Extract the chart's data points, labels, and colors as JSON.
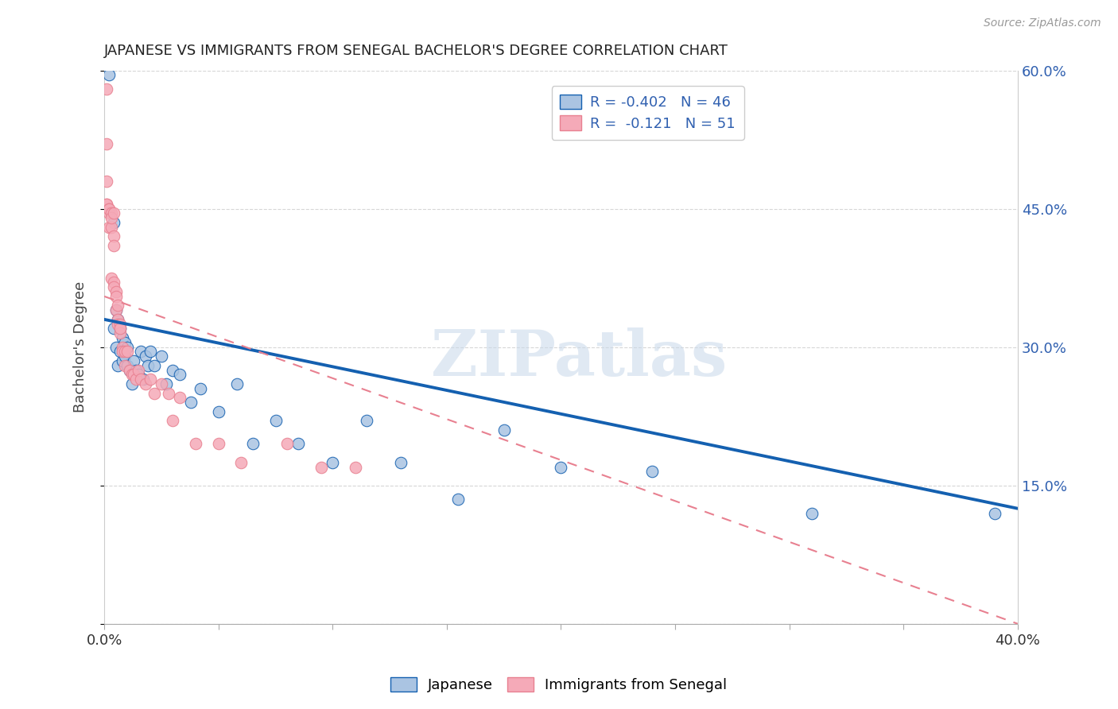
{
  "title": "JAPANESE VS IMMIGRANTS FROM SENEGAL BACHELOR'S DEGREE CORRELATION CHART",
  "source": "Source: ZipAtlas.com",
  "ylabel": "Bachelor's Degree",
  "xlim": [
    0,
    0.4
  ],
  "ylim": [
    0,
    0.6
  ],
  "xticks": [
    0.0,
    0.05,
    0.1,
    0.15,
    0.2,
    0.25,
    0.3,
    0.35,
    0.4
  ],
  "yticks": [
    0.0,
    0.15,
    0.3,
    0.45,
    0.6
  ],
  "ytick_labels": [
    "",
    "15.0%",
    "30.0%",
    "45.0%",
    "60.0%"
  ],
  "watermark_text": "ZIPatlas",
  "legend_R_japanese": "-0.402",
  "legend_N_japanese": "46",
  "legend_R_senegal": "-0.121",
  "legend_N_senegal": "51",
  "japanese_color": "#aac4e2",
  "senegal_color": "#f5aab8",
  "trend_japanese_color": "#1460b0",
  "trend_senegal_color": "#e88090",
  "tick_color": "#3060b0",
  "japanese_x": [
    0.002,
    0.004,
    0.004,
    0.005,
    0.005,
    0.006,
    0.006,
    0.007,
    0.007,
    0.008,
    0.008,
    0.009,
    0.009,
    0.01,
    0.01,
    0.011,
    0.012,
    0.013,
    0.014,
    0.015,
    0.016,
    0.017,
    0.018,
    0.019,
    0.02,
    0.022,
    0.025,
    0.027,
    0.03,
    0.033,
    0.038,
    0.042,
    0.05,
    0.058,
    0.065,
    0.075,
    0.085,
    0.1,
    0.115,
    0.13,
    0.155,
    0.175,
    0.2,
    0.24,
    0.31,
    0.39
  ],
  "japanese_y": [
    0.595,
    0.435,
    0.32,
    0.34,
    0.3,
    0.33,
    0.28,
    0.32,
    0.295,
    0.31,
    0.285,
    0.29,
    0.305,
    0.28,
    0.3,
    0.275,
    0.26,
    0.285,
    0.275,
    0.27,
    0.295,
    0.265,
    0.29,
    0.28,
    0.295,
    0.28,
    0.29,
    0.26,
    0.275,
    0.27,
    0.24,
    0.255,
    0.23,
    0.26,
    0.195,
    0.22,
    0.195,
    0.175,
    0.22,
    0.175,
    0.135,
    0.21,
    0.17,
    0.165,
    0.12,
    0.12
  ],
  "senegal_x": [
    0.001,
    0.001,
    0.001,
    0.001,
    0.001,
    0.002,
    0.002,
    0.002,
    0.002,
    0.003,
    0.003,
    0.003,
    0.003,
    0.004,
    0.004,
    0.004,
    0.004,
    0.004,
    0.005,
    0.005,
    0.005,
    0.006,
    0.006,
    0.006,
    0.007,
    0.007,
    0.007,
    0.008,
    0.008,
    0.009,
    0.009,
    0.01,
    0.011,
    0.012,
    0.013,
    0.014,
    0.015,
    0.016,
    0.018,
    0.02,
    0.022,
    0.025,
    0.028,
    0.03,
    0.033,
    0.04,
    0.05,
    0.06,
    0.08,
    0.095,
    0.11
  ],
  "senegal_y": [
    0.58,
    0.52,
    0.48,
    0.455,
    0.455,
    0.45,
    0.445,
    0.43,
    0.45,
    0.445,
    0.43,
    0.44,
    0.375,
    0.445,
    0.42,
    0.41,
    0.37,
    0.365,
    0.36,
    0.355,
    0.34,
    0.345,
    0.33,
    0.325,
    0.325,
    0.315,
    0.32,
    0.3,
    0.295,
    0.295,
    0.28,
    0.295,
    0.275,
    0.27,
    0.27,
    0.265,
    0.275,
    0.265,
    0.26,
    0.265,
    0.25,
    0.26,
    0.25,
    0.22,
    0.245,
    0.195,
    0.195,
    0.175,
    0.195,
    0.17,
    0.17
  ],
  "trend_jp_x0": 0.0,
  "trend_jp_y0": 0.33,
  "trend_jp_x1": 0.4,
  "trend_jp_y1": 0.125,
  "trend_sn_x0": 0.0,
  "trend_sn_y0": 0.355,
  "trend_sn_x1": 0.4,
  "trend_sn_y1": 0.0
}
